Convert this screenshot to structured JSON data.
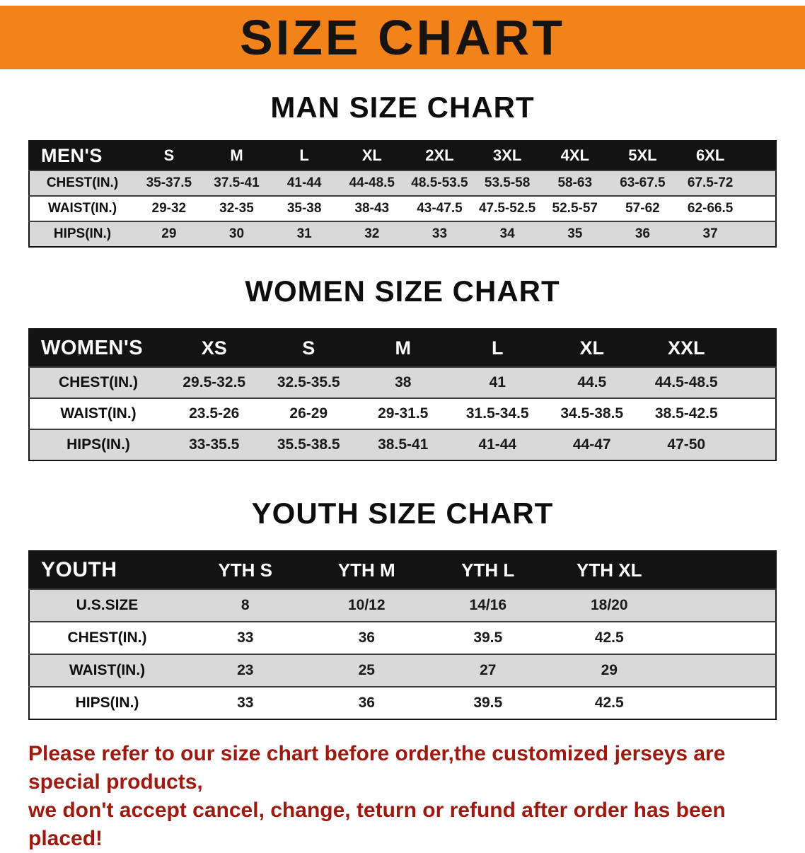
{
  "banner": {
    "title": "SIZE CHART",
    "bg_color": "#F2831B",
    "text_color": "#161310"
  },
  "sections": [
    {
      "id": "men",
      "heading": "MAN SIZE CHART",
      "table": {
        "label": "MEN'S",
        "columns": [
          "S",
          "M",
          "L",
          "XL",
          "2XL",
          "3XL",
          "4XL",
          "5XL",
          "6XL"
        ],
        "rows": [
          {
            "label": "CHEST(IN.)",
            "values": [
              "35-37.5",
              "37.5-41",
              "41-44",
              "44-48.5",
              "48.5-53.5",
              "53.5-58",
              "58-63",
              "63-67.5",
              "67.5-72"
            ]
          },
          {
            "label": "WAIST(IN.)",
            "values": [
              "29-32",
              "32-35",
              "35-38",
              "38-43",
              "43-47.5",
              "47.5-52.5",
              "52.5-57",
              "57-62",
              "62-66.5"
            ]
          },
          {
            "label": "HIPS(IN.)",
            "values": [
              "29",
              "30",
              "31",
              "32",
              "33",
              "34",
              "35",
              "36",
              "37"
            ]
          }
        ]
      }
    },
    {
      "id": "women",
      "heading": "WOMEN SIZE CHART",
      "table": {
        "label": "WOMEN'S",
        "columns": [
          "XS",
          "S",
          "M",
          "L",
          "XL",
          "XXL"
        ],
        "rows": [
          {
            "label": "CHEST(IN.)",
            "values": [
              "29.5-32.5",
              "32.5-35.5",
              "38",
              "41",
              "44.5",
              "44.5-48.5"
            ]
          },
          {
            "label": "WAIST(IN.)",
            "values": [
              "23.5-26",
              "26-29",
              "29-31.5",
              "31.5-34.5",
              "34.5-38.5",
              "38.5-42.5"
            ]
          },
          {
            "label": "HIPS(IN.)",
            "values": [
              "33-35.5",
              "35.5-38.5",
              "38.5-41",
              "41-44",
              "44-47",
              "47-50"
            ]
          }
        ]
      }
    },
    {
      "id": "youth",
      "heading": "YOUTH SIZE CHART",
      "table": {
        "label": "YOUTH",
        "columns": [
          "YTH S",
          "YTH M",
          "YTH L",
          "YTH XL"
        ],
        "rows": [
          {
            "label": "U.S.SIZE",
            "values": [
              "8",
              "10/12",
              "14/16",
              "18/20"
            ]
          },
          {
            "label": "CHEST(IN.)",
            "values": [
              "33",
              "36",
              "39.5",
              "42.5"
            ]
          },
          {
            "label": "WAIST(IN.)",
            "values": [
              "23",
              "25",
              "27",
              "29"
            ]
          },
          {
            "label": "HIPS(IN.)",
            "values": [
              "33",
              "36",
              "39.5",
              "42.5"
            ]
          }
        ]
      }
    }
  ],
  "footer": {
    "line1": "Please refer to our size chart before order,the customized jerseys are special products,",
    "line2": "we don't accept cancel, change, teturn or refund after order has been placed!",
    "text_color": "#9C1A10"
  }
}
